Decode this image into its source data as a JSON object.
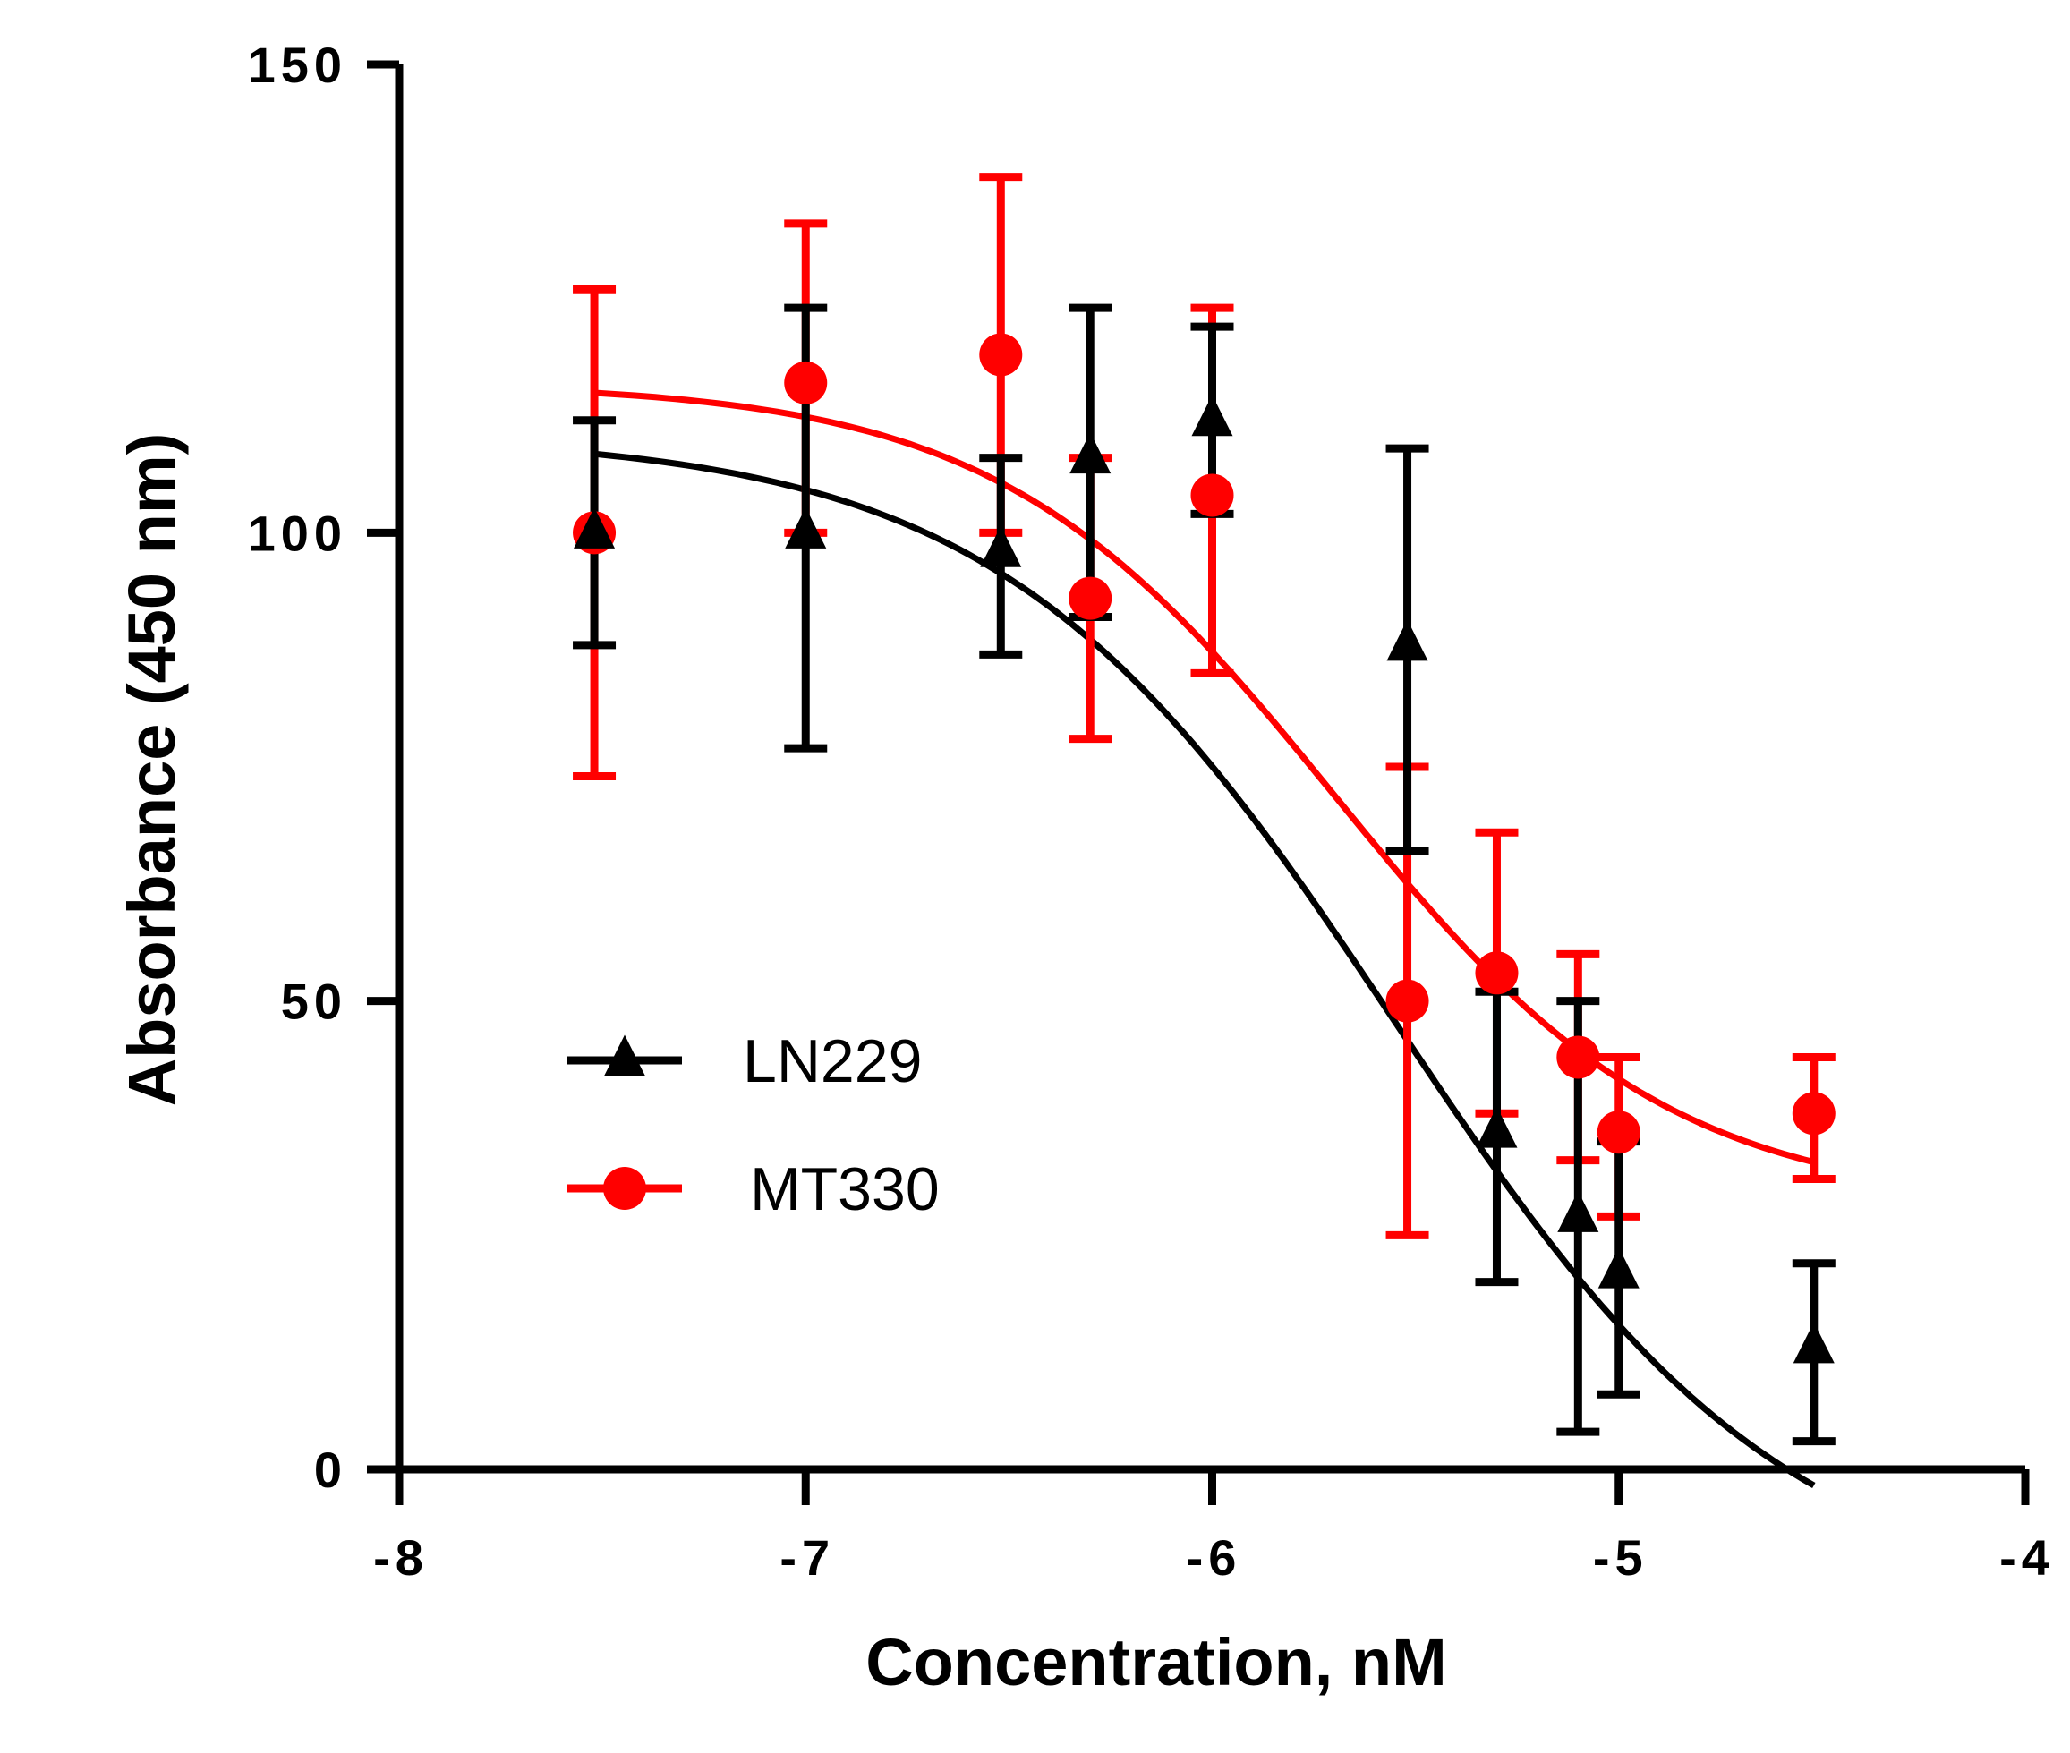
{
  "chart_data": {
    "type": "scatter",
    "title": "",
    "xlabel": "Concentration, nM",
    "ylabel": "Absorbance (450 nm)",
    "xlim": [
      -8,
      -4
    ],
    "ylim": [
      0,
      150
    ],
    "xticks": [
      -8,
      -7,
      -6,
      -5,
      -4
    ],
    "xtick_labels": [
      "-8",
      "-7",
      "-6",
      "-5",
      "-4"
    ],
    "yticks": [
      0,
      50,
      100,
      150
    ],
    "ytick_labels": [
      "0",
      "50",
      "100",
      "150"
    ],
    "grid": false,
    "legend_position": "center-left",
    "series": [
      {
        "name": "LN229",
        "color": "#000000",
        "marker": "triangle",
        "x": [
          -7.52,
          -7.0,
          -6.52,
          -6.3,
          -6.0,
          -5.52,
          -5.3,
          -5.1,
          -5.0,
          -4.52
        ],
        "y": [
          100,
          100,
          98,
          108,
          112,
          88,
          36,
          27,
          21,
          13
        ],
        "err_low": [
          88,
          77,
          87,
          91,
          102,
          66,
          20,
          4,
          8,
          3
        ],
        "err_high": [
          112,
          124,
          108,
          124,
          122,
          109,
          51,
          50,
          35,
          22
        ],
        "fit_curve": {
          "top": 110.5,
          "bottom": -15,
          "log_ic50": -5.55,
          "hill": -0.9
        }
      },
      {
        "name": "MT330",
        "color": "#ff0000",
        "marker": "circle",
        "x": [
          -7.52,
          -7.0,
          -6.52,
          -6.3,
          -6.0,
          -5.52,
          -5.3,
          -5.1,
          -5.0,
          -4.52
        ],
        "y": [
          100,
          116,
          119,
          93,
          104,
          50,
          53,
          44,
          36,
          38
        ],
        "err_low": [
          74,
          100,
          100,
          78,
          85,
          25,
          38,
          33,
          27,
          31
        ],
        "err_high": [
          126,
          133,
          138,
          108,
          124,
          75,
          68,
          55,
          44,
          44
        ],
        "fit_curve": {
          "top": 116,
          "bottom": 28,
          "log_ic50": -5.7,
          "hill": -1.05
        }
      }
    ]
  }
}
